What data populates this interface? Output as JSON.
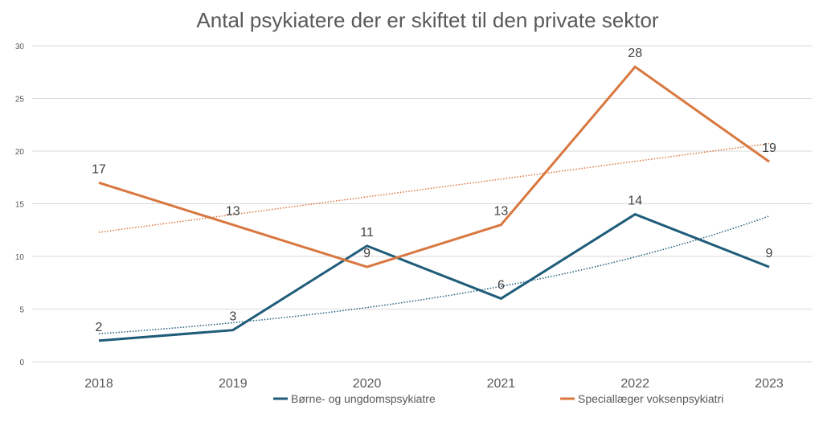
{
  "chart_data": {
    "type": "line",
    "title": "Antal psykiatere der er skiftet til den private sektor",
    "xlabel": "",
    "ylabel": "",
    "categories": [
      "2018",
      "2019",
      "2020",
      "2021",
      "2022",
      "2023"
    ],
    "ylim": [
      0,
      30
    ],
    "yticks": [
      0,
      5,
      10,
      15,
      20,
      25,
      30
    ],
    "grid": true,
    "legend_position": "bottom",
    "series": [
      {
        "name": "Børne- og ungdomspsykiatre",
        "color": "#1F5C7A",
        "values": [
          2,
          3,
          11,
          6,
          14,
          9
        ],
        "trendline": {
          "type": "exponential",
          "style": "dotted"
        }
      },
      {
        "name": "Speciallæger voksenpsykiatri",
        "color": "#D9773F",
        "values": [
          17,
          13,
          9,
          13,
          28,
          19
        ],
        "trendline": {
          "type": "linear",
          "style": "dotted"
        }
      }
    ]
  }
}
